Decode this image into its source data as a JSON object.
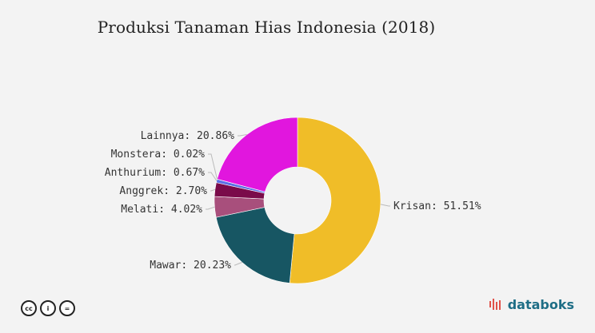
{
  "title": "Produksi Tanaman Hias Indonesia (2018)",
  "chart_data": {
    "type": "pie",
    "donut": true,
    "categories": [
      "Krisan",
      "Mawar",
      "Melati",
      "Anggrek",
      "Anthurium",
      "Monstera",
      "Lainnya"
    ],
    "values": [
      51.51,
      20.23,
      4.02,
      2.7,
      0.67,
      0.02,
      20.86
    ],
    "labels": [
      "Krisan: 51.51%",
      "Mawar: 20.23%",
      "Melati: 4.02%",
      "Anggrek: 2.70%",
      "Anthurium: 0.67%",
      "Monstera: 0.02%",
      "Lainnya: 20.86%"
    ],
    "colors": [
      "#f0bd28",
      "#175663",
      "#a84f7c",
      "#7a0b4a",
      "#5b6fe6",
      "#7ad25e",
      "#e116de"
    ],
    "legend": "none"
  },
  "footer": {
    "license_icons": [
      "cc-icon",
      "by-icon",
      "nd-icon"
    ],
    "brand": "databoks"
  }
}
